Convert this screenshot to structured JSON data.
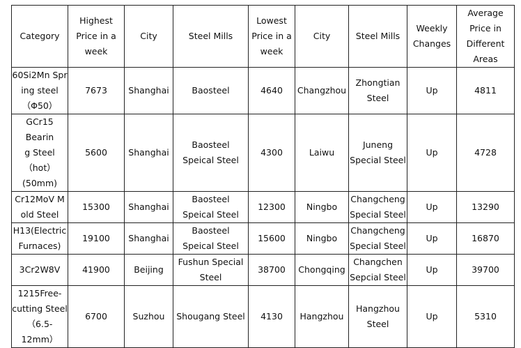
{
  "table": {
    "header": [
      "Category",
      "Highest\nPrice in a\nweek",
      "City",
      "Steel Mills",
      "Lowest\nPrice in a\nweek",
      "City",
      "Steel Mills",
      "Weekly\nChanges",
      "Average\nPrice in\nDifferent\nAreas"
    ],
    "rows": [
      [
        "60Si2Mn Spr\ning steel\n（Φ50）",
        7673,
        "Shanghai",
        "Baosteel",
        4640,
        "Changzhou",
        "Zhongtian\nSteel",
        "Up",
        4811
      ],
      [
        "GCr15 Bearin\ng Steel\n（hot）\n(50mm)",
        5600,
        "Shanghai",
        "Baosteel\nSpeical Steel",
        4300,
        "Laiwu",
        "Juneng\nSpecial Steel",
        "Up",
        4728
      ],
      [
        "Cr12MoV M\nold Steel",
        15300,
        "Shanghai",
        "Baosteel\nSpeical Steel",
        12300,
        "Ningbo",
        "Changcheng\nSpecial Steel",
        "Up",
        13290
      ],
      [
        "H13(Electric\nFurnaces)",
        19100,
        "Shanghai",
        "Baosteel\nSpeical Steel",
        15600,
        "Ningbo",
        "Changcheng\nSpecial Steel",
        "Up",
        16870
      ],
      [
        "3Cr2W8V",
        41900,
        "Beijing",
        "Fushun Special\nSteel",
        38700,
        "Chongqing",
        "Changchen\nSepcial Steel",
        "Up",
        39700
      ],
      [
        "1215Free-\ncutting Steel\n（6.5-\n12mm）",
        6700,
        "Suzhou",
        "Shougang Steel",
        4130,
        "Hangzhou",
        "Hangzhou\nSteel",
        "Up",
        5310
      ]
    ]
  }
}
